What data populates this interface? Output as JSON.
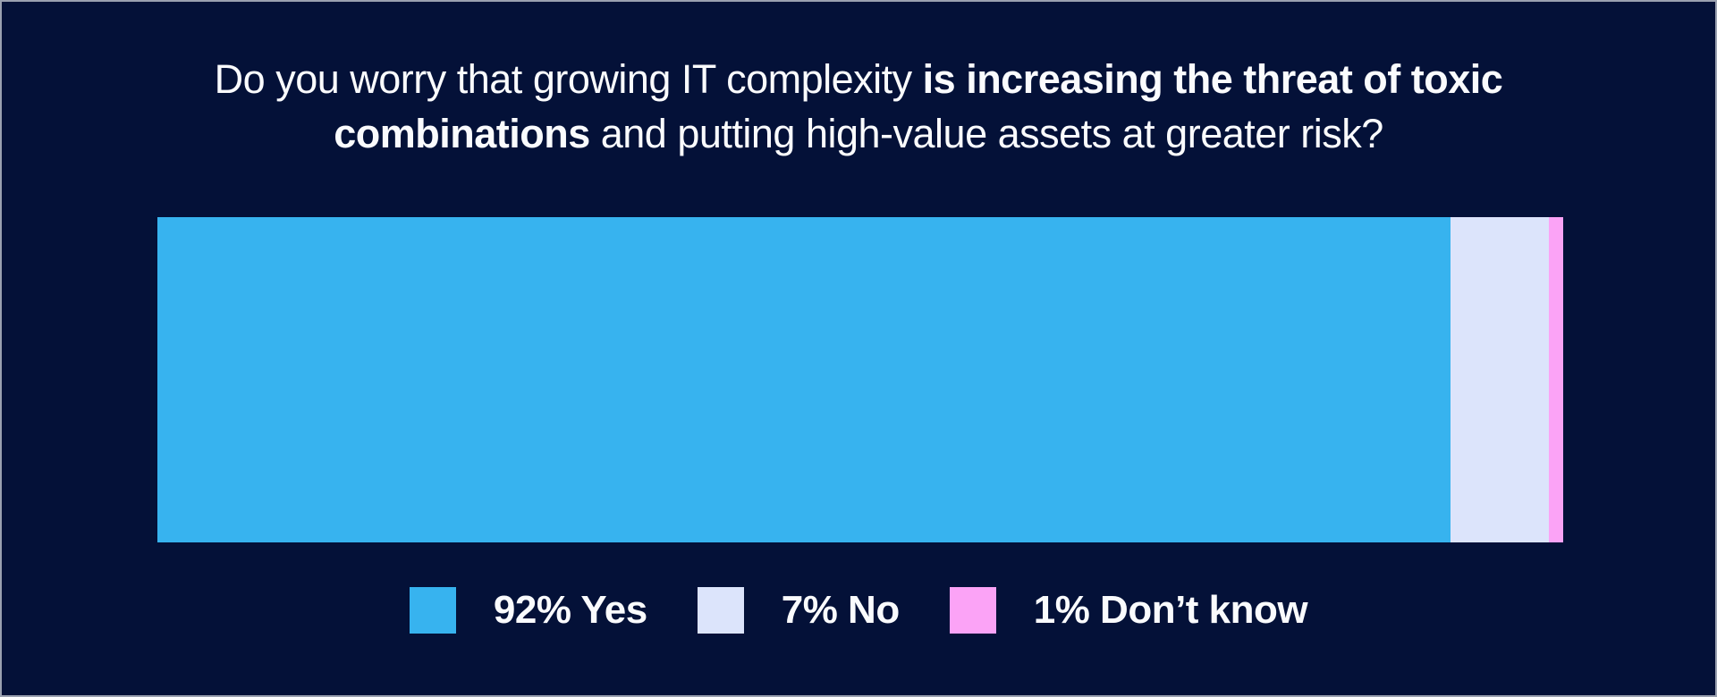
{
  "title": {
    "line1_regular": "Do you worry that growing IT complexity ",
    "line1_bold": "is increasing the threat of toxic",
    "line2_bold": "combinations",
    "line2_regular": " and putting high-value assets at greater risk?"
  },
  "colors": {
    "background": "#041138",
    "border": "#9AA1B0",
    "text": "#FAFBFD",
    "yes": "#37B3EF",
    "no": "#DCE4FB",
    "dont_know": "#FBA3F6"
  },
  "chart_data": {
    "type": "bar",
    "orientation": "horizontal-stacked",
    "title": "Do you worry that growing IT complexity is increasing the threat of toxic combinations and putting high-value assets at greater risk?",
    "categories": [
      "Yes",
      "No",
      "Don't know"
    ],
    "values": [
      92,
      7,
      1
    ],
    "unit": "%",
    "colors": [
      "#37B3EF",
      "#DCE4FB",
      "#FBA3F6"
    ],
    "xlim": [
      0,
      100
    ],
    "grid": false,
    "legend_position": "bottom"
  },
  "legend": {
    "items": [
      {
        "label": "92% Yes",
        "color": "#37B3EF"
      },
      {
        "label": "7% No",
        "color": "#DCE4FB"
      },
      {
        "label": "1% Don’t know",
        "color": "#FBA3F6"
      }
    ]
  }
}
